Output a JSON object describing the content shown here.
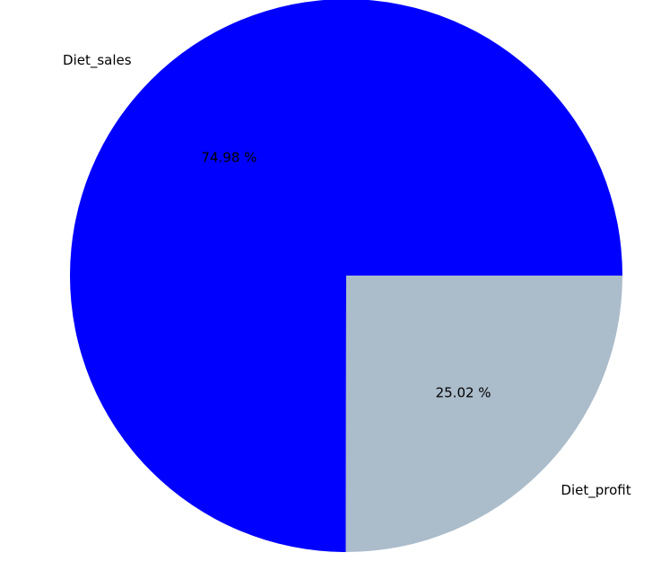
{
  "chart_data": {
    "type": "pie",
    "categories": [
      "Diet_sales",
      "Diet_profit"
    ],
    "values": [
      74.98,
      25.02
    ],
    "percent_labels": [
      "74.98 %",
      "25.02 %"
    ],
    "colors": [
      "#0000ff",
      "#abbccb"
    ],
    "legend": "none"
  }
}
